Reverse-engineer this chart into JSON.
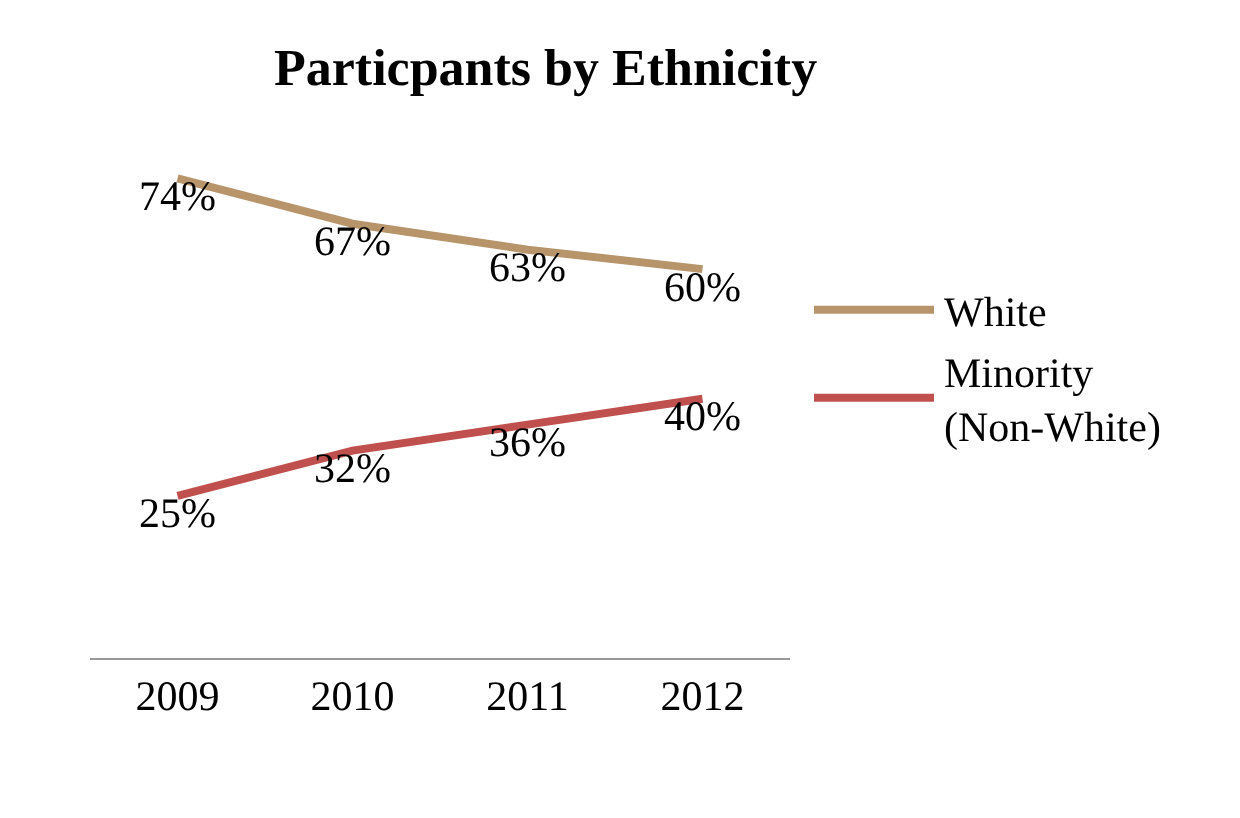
{
  "chart_data": {
    "type": "line",
    "title": "Particpants by Ethnicity",
    "categories": [
      "2009",
      "2010",
      "2011",
      "2012"
    ],
    "series": [
      {
        "name": "White",
        "color": "#b7946a",
        "values": [
          74,
          67,
          63,
          60
        ],
        "value_labels": [
          "74%",
          "67%",
          "63%",
          "60%"
        ]
      },
      {
        "name": "Minority (Non-White)",
        "color": "#c0504d",
        "values": [
          25,
          32,
          36,
          40
        ],
        "value_labels": [
          "25%",
          "32%",
          "36%",
          "40%"
        ]
      }
    ],
    "marker": "none",
    "line_style": "solid",
    "grid": false,
    "legend": "right"
  }
}
